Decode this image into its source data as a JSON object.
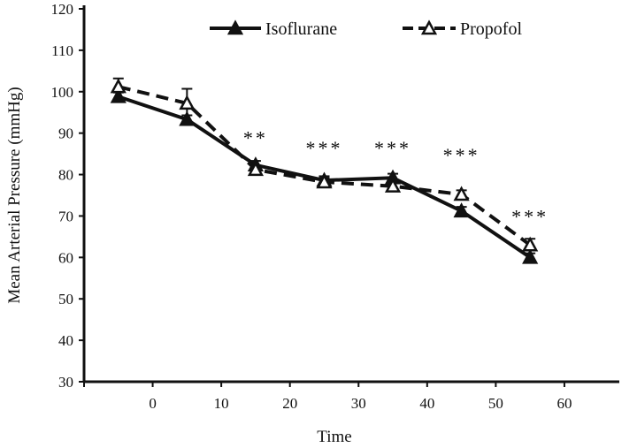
{
  "chart_data": {
    "type": "line",
    "title": "",
    "xlabel": "Time",
    "ylabel": "Mean Arterial Pressure (mmHg)",
    "xlim": [
      -10,
      68
    ],
    "ylim": [
      30,
      120
    ],
    "xticks": [
      0,
      10,
      20,
      30,
      40,
      50,
      60
    ],
    "yticks": [
      30,
      40,
      50,
      60,
      70,
      80,
      90,
      100,
      110,
      120
    ],
    "grid": false,
    "legend_position": "top",
    "x": [
      -5,
      5,
      15,
      25,
      35,
      45,
      55
    ],
    "series": [
      {
        "name": "Isoflurane",
        "style": "solid",
        "marker": "filled-triangle",
        "values": [
          98.8,
          93.3,
          82.3,
          78.6,
          79.2,
          71.2,
          60.0
        ],
        "errors": [
          1.0,
          1.0,
          1.0,
          1.0,
          1.0,
          1.0,
          1.0
        ]
      },
      {
        "name": "Propofol",
        "style": "dashed",
        "marker": "open-triangle",
        "values": [
          101.2,
          97.2,
          81.2,
          78.2,
          77.2,
          75.2,
          63.0
        ],
        "errors": [
          2.0,
          3.5,
          1.0,
          1.0,
          1.0,
          1.0,
          1.5
        ]
      }
    ],
    "annotations": [
      {
        "text": "**",
        "x": 15,
        "y": 89
      },
      {
        "text": "***",
        "x": 25,
        "y": 86.5
      },
      {
        "text": "***",
        "x": 35,
        "y": 86.5
      },
      {
        "text": "***",
        "x": 45,
        "y": 84.8
      },
      {
        "text": "***",
        "x": 55,
        "y": 70
      }
    ],
    "color": "#111111"
  }
}
